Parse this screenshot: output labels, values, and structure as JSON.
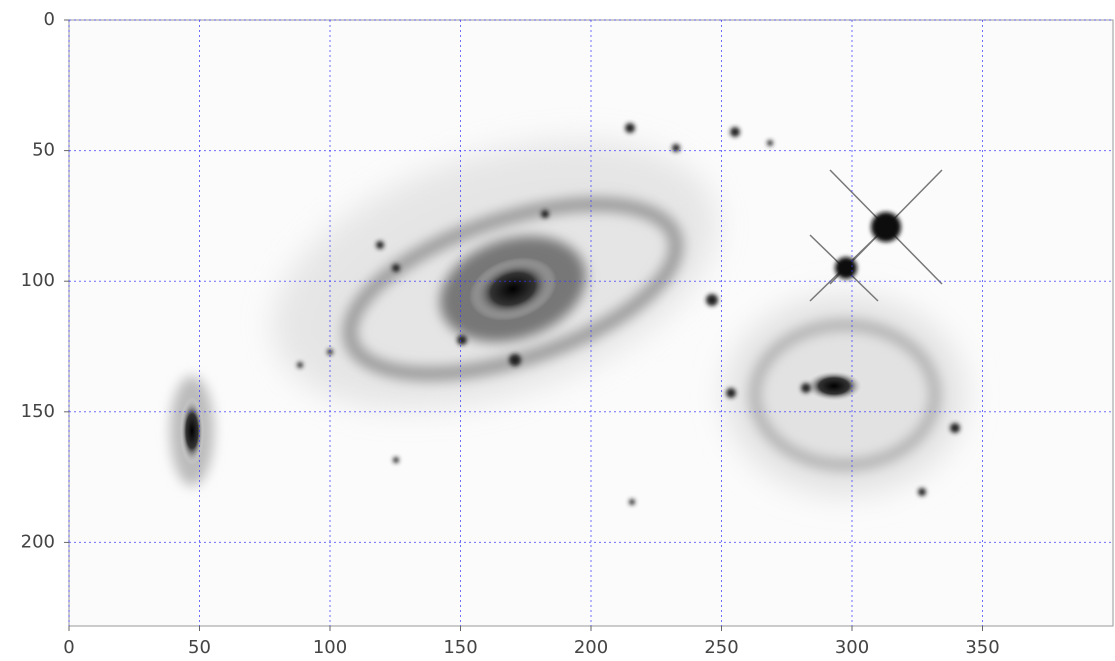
{
  "chart_data": {
    "type": "image",
    "xlim": [
      0,
      400
    ],
    "ylim": [
      232,
      0
    ],
    "xticks": [
      0,
      50,
      100,
      150,
      200,
      250,
      300,
      350
    ],
    "yticks": [
      0,
      50,
      100,
      150,
      200
    ],
    "grid": true,
    "grid_color": "#3333ff"
  }
}
